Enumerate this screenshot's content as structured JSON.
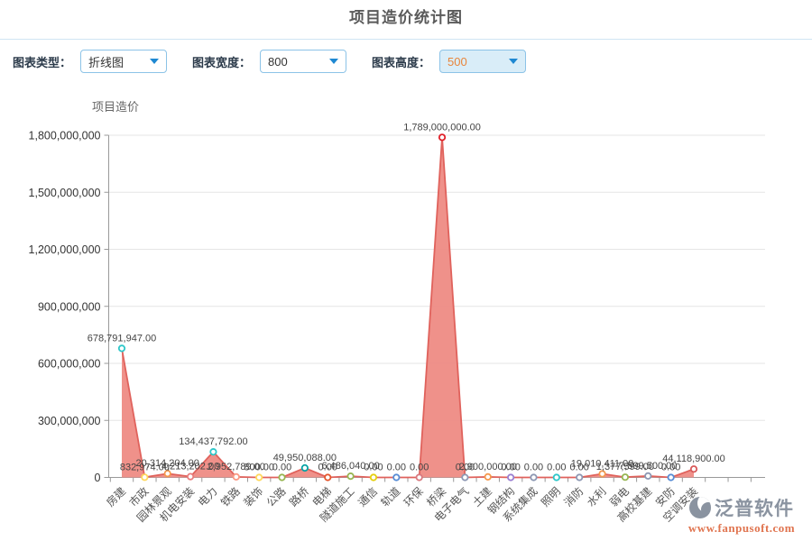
{
  "page_title": "项目造价统计图",
  "toolbar": {
    "chart_type_label": "图表类型：",
    "chart_type_value": "折线图",
    "chart_width_label": "图表宽度：",
    "chart_width_value": "800",
    "chart_height_label": "图表高度：",
    "chart_height_value": "500"
  },
  "chart_data": {
    "type": "area",
    "title": "项目造价",
    "categories": [
      "房建",
      "市政",
      "园林景观",
      "机电安装",
      "电力",
      "铁路",
      "装饰",
      "公路",
      "路桥",
      "电梯",
      "隧道施工",
      "通信",
      "轨道",
      "环保",
      "桥梁",
      "电子电气",
      "土建",
      "钢结构",
      "系统集成",
      "照明",
      "消防",
      "水利",
      "弱电",
      "高校基建",
      "安防",
      "空调安装"
    ],
    "values": [
      678791947,
      832974,
      20314204,
      4213202,
      134437792,
      2952789,
      800,
      0,
      49950088,
      0,
      6486040,
      0,
      0,
      0,
      1789000000,
      0,
      2900000,
      0,
      0,
      0,
      0,
      19010411,
      1377599,
      7599500,
      0,
      44118900
    ],
    "point_labels": [
      "678,791,947.00",
      "832,974.00",
      "20,314,204.00",
      "4,213,202.00",
      "134,437,792.00",
      "2,952,789.00",
      "800.00",
      "0.00",
      "49,950,088.00",
      "0.00",
      "6,486,040.00",
      "0.00",
      "0.00",
      "0.00",
      "1,789,000,000.00",
      "0.00",
      "2,900,000.00",
      "0.00",
      "0.00",
      "0.00",
      "0.00",
      "19,010,411.00",
      "1,377,599.00",
      "7,599,500.00",
      "0.00",
      "44,118,900.00"
    ],
    "ylim": [
      0,
      1800000000
    ],
    "yticks": [
      {
        "value": 0,
        "label": "0"
      },
      {
        "value": 300000000,
        "label": "300,000,000"
      },
      {
        "value": 600000000,
        "label": "600,000,000"
      },
      {
        "value": 900000000,
        "label": "900,000,000"
      },
      {
        "value": 1200000000,
        "label": "1,200,000,000"
      },
      {
        "value": 1500000000,
        "label": "1,500,000,000"
      },
      {
        "value": 1800000000,
        "label": "1,800,000,000"
      }
    ],
    "grid": true,
    "legend_position": "none",
    "line_color": "#e0625c",
    "fill_color": "#ee8b84",
    "marker_colors": [
      "#2ec7c9",
      "#ffd85c",
      "#f5994e",
      "#e87c7c",
      "#2ec7c9",
      "#fa9a85",
      "#ffd85c",
      "#97b552",
      "#07a2a4",
      "#e4572e",
      "#97b552",
      "#e5cf0d",
      "#588dd5",
      "#d87a80",
      "#e01f28",
      "#8d98b3",
      "#f5994e",
      "#9a7fd1",
      "#8d98b3",
      "#2ec7c9",
      "#8d98b3",
      "#f5994e",
      "#97b552",
      "#8d98b3",
      "#588dd5",
      "#d85a5a"
    ],
    "axis_color": "#999999",
    "grid_color": "#e6e6e6",
    "label_color": "#444444",
    "tick_label_color": "#333333"
  },
  "watermark": {
    "brand": "泛普软件",
    "url": "www.fanpusoft.com"
  }
}
